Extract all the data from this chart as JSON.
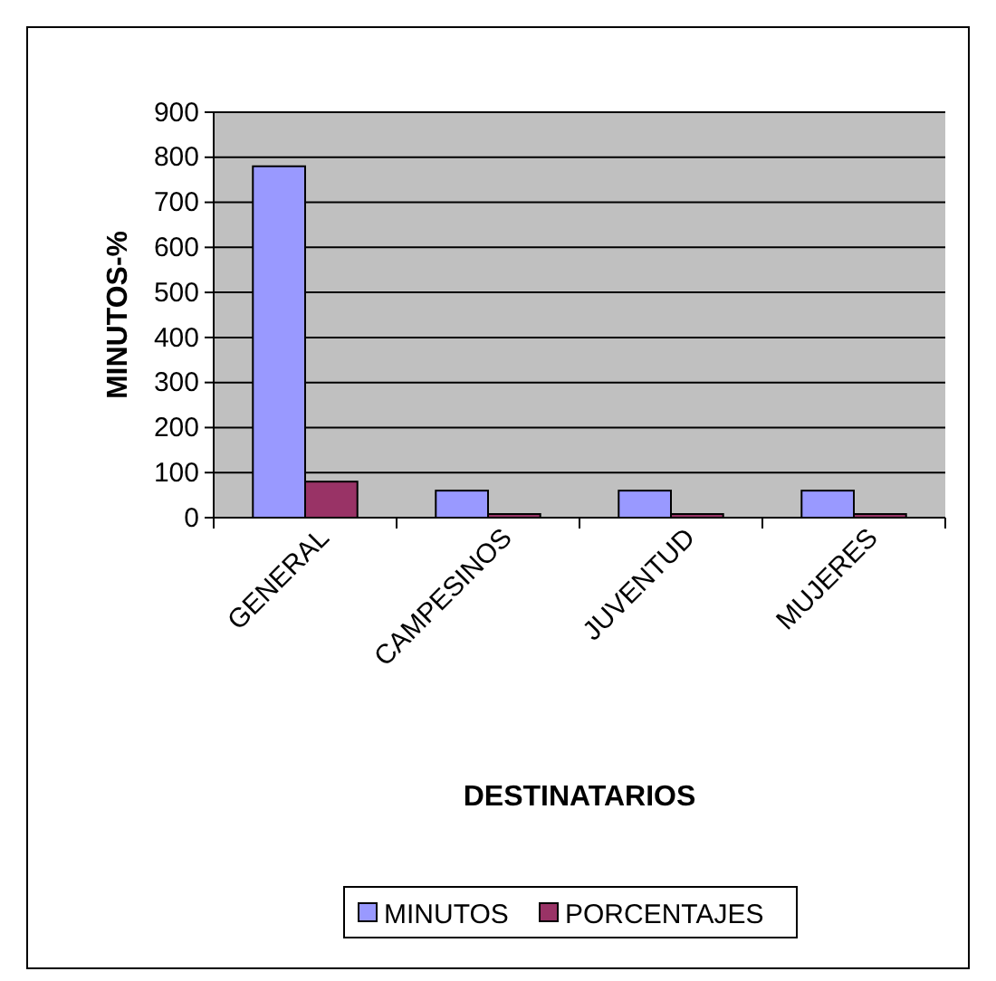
{
  "chart_data": {
    "type": "bar",
    "xlabel": "DESTINATARIOS",
    "ylabel": "MINUTOS-%",
    "categories": [
      "GENERAL",
      "CAMPESINOS",
      "JUVENTUD",
      "MUJERES"
    ],
    "series": [
      {
        "name": "MINUTOS",
        "color": "#9999ff",
        "values": [
          780,
          60,
          60,
          60
        ]
      },
      {
        "name": "PORCENTAJES",
        "color": "#993366",
        "values": [
          80,
          8,
          8,
          8
        ]
      }
    ],
    "ylim": [
      0,
      900
    ],
    "yticks": [
      0,
      100,
      200,
      300,
      400,
      500,
      600,
      700,
      800,
      900
    ],
    "grid": "y",
    "legend": "bottom"
  }
}
